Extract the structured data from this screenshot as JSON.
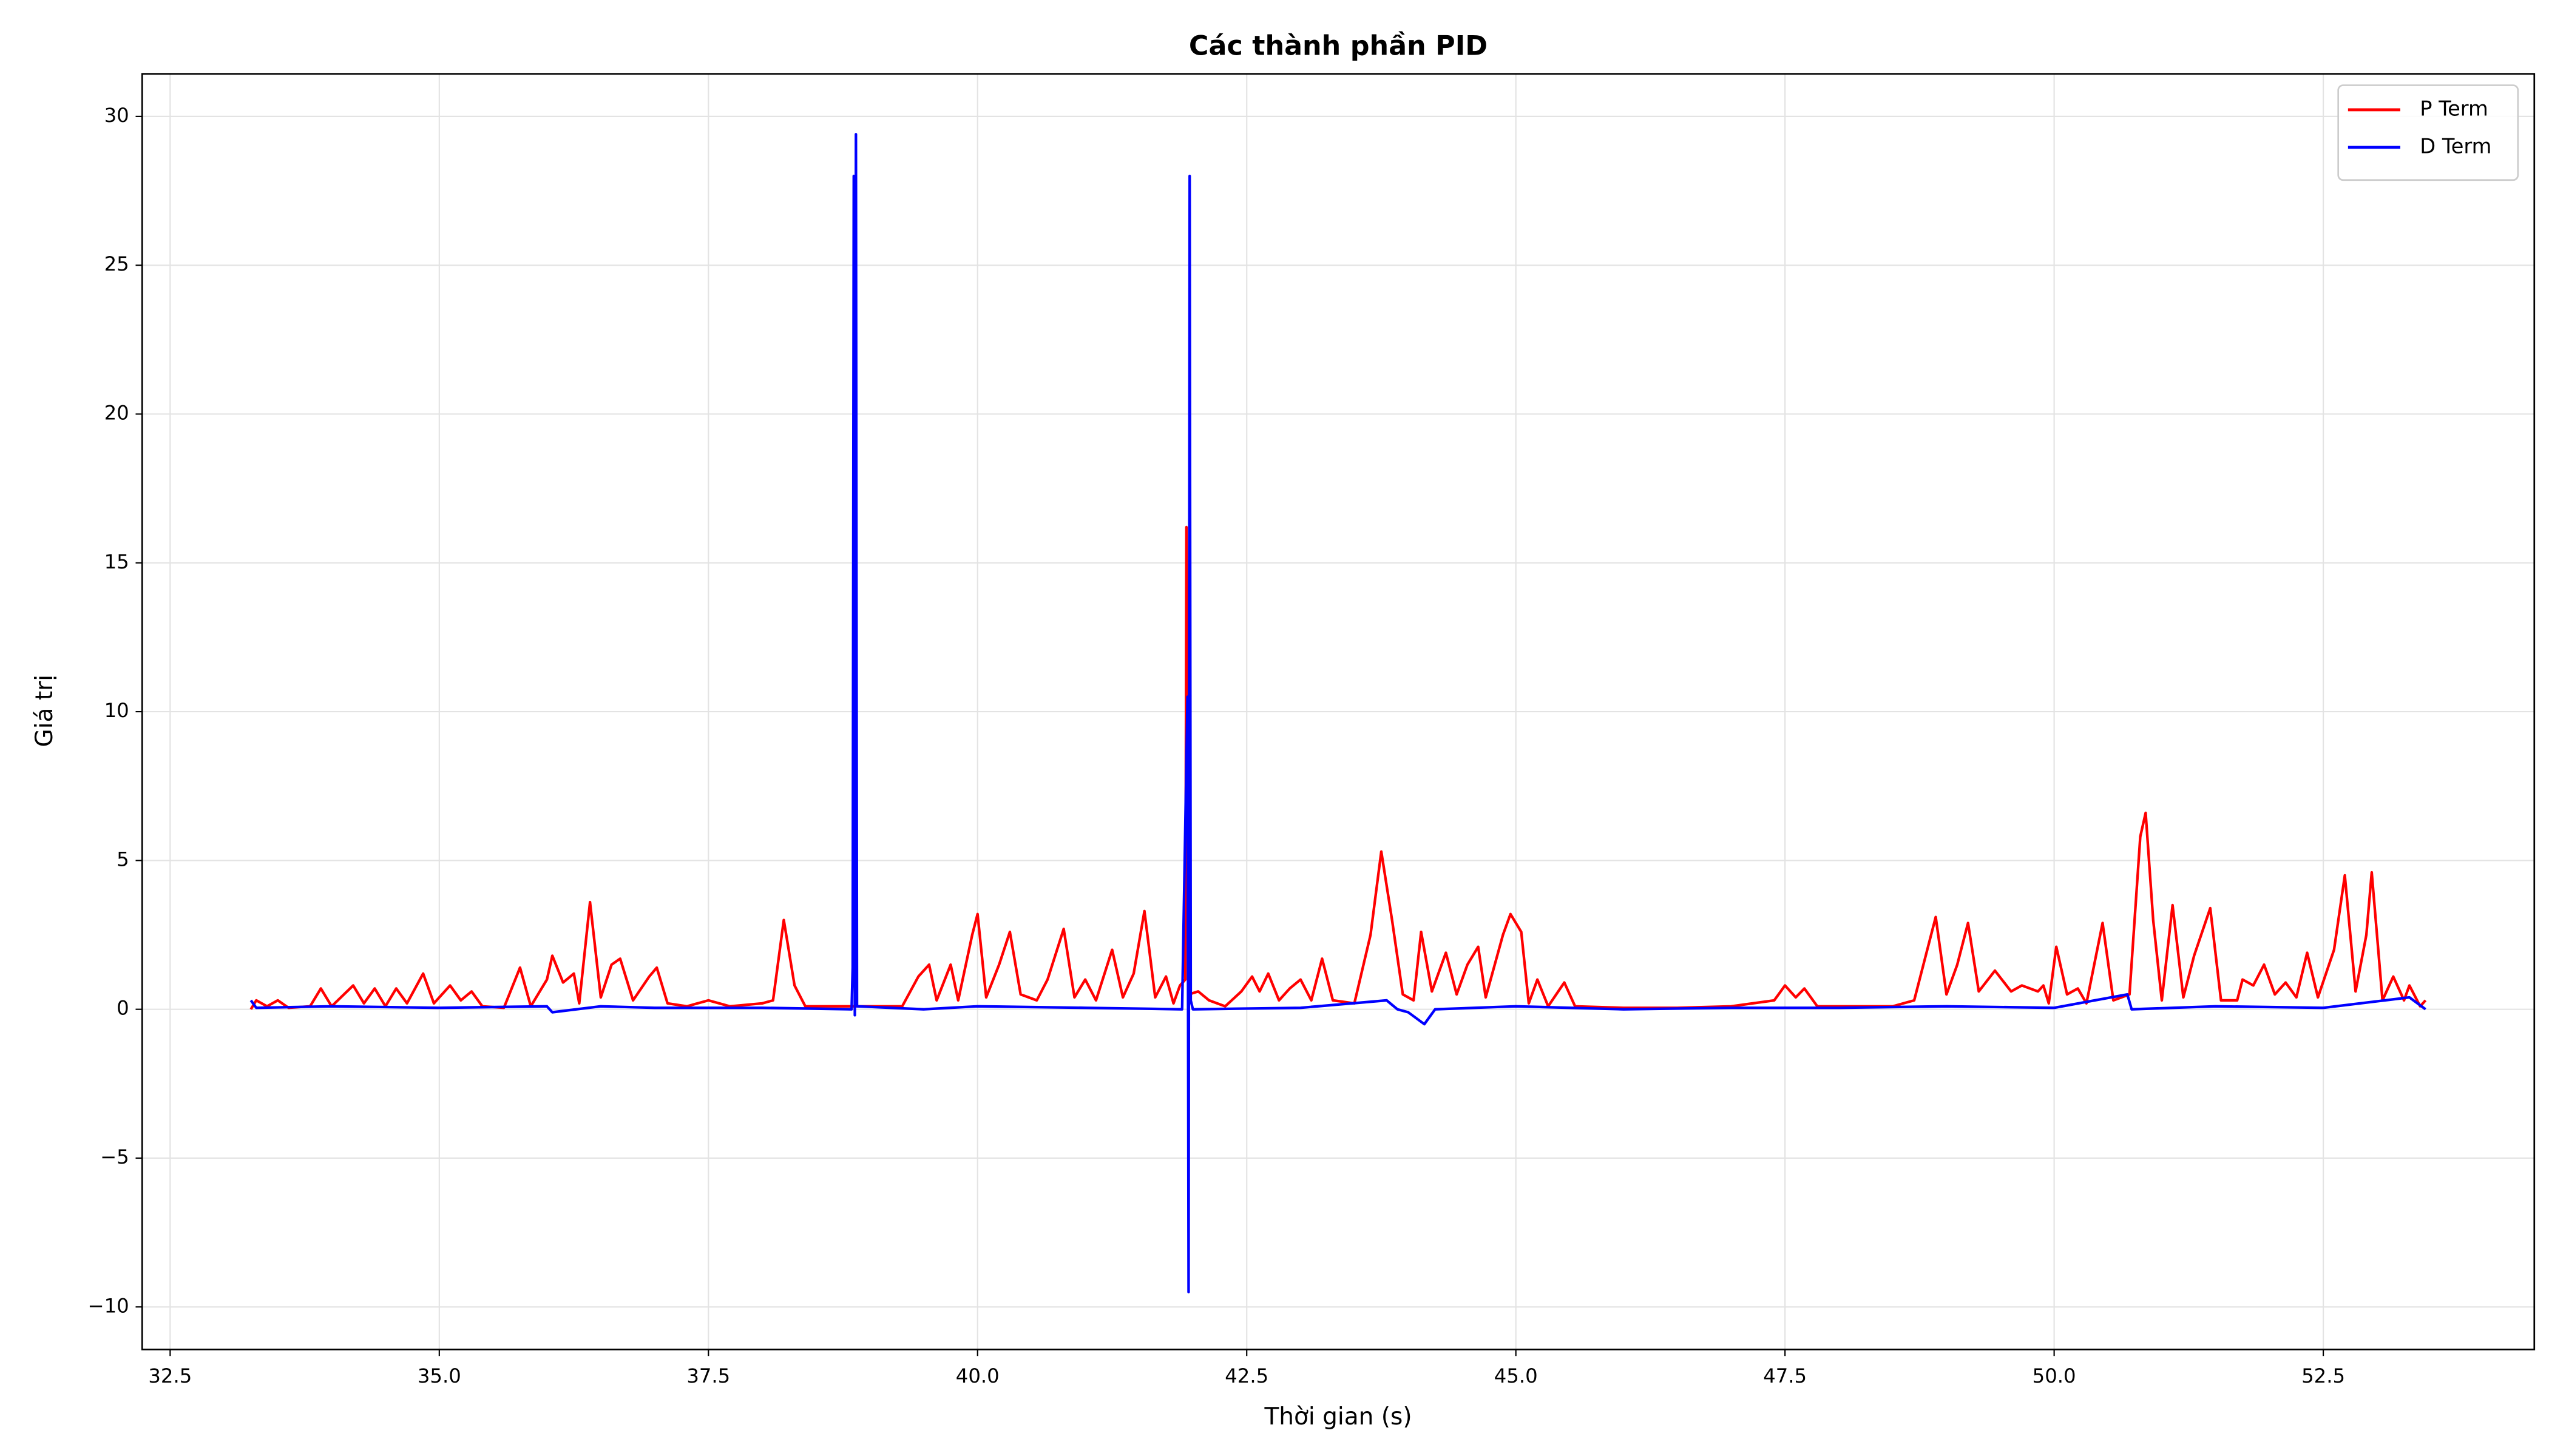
{
  "chart_data": {
    "type": "line",
    "title": "Các thành phần PID",
    "x_label": "Thời gian (s)",
    "y_label": "Giá trị",
    "xlim": [
      32.24,
      54.46
    ],
    "ylim": [
      -11.43,
      31.43
    ],
    "xticks": [
      32.5,
      {
        "value": 35,
        "label": "35.0"
      },
      37.5,
      {
        "value": 40,
        "label": "40.0"
      },
      42.5,
      {
        "value": 45,
        "label": "45.0"
      },
      47.5,
      {
        "value": 50,
        "label": "50.0"
      },
      52.5
    ],
    "yticks": [
      {
        "value": -10,
        "label": "−10"
      },
      {
        "value": -5,
        "label": "−5"
      },
      0,
      5,
      10,
      15,
      20,
      25,
      30
    ],
    "grid": true,
    "legend": "upper right",
    "series": [
      {
        "name": "P Term",
        "color": "#ff0000",
        "x": [
          33.25,
          33.3,
          33.4,
          33.5,
          33.6,
          33.8,
          33.9,
          34.0,
          34.2,
          34.3,
          34.4,
          34.5,
          34.6,
          34.7,
          34.85,
          34.95,
          35.1,
          35.2,
          35.3,
          35.4,
          35.6,
          35.75,
          35.85,
          36.0,
          36.05,
          36.15,
          36.25,
          36.3,
          36.4,
          36.5,
          36.6,
          36.68,
          36.8,
          36.95,
          37.02,
          37.12,
          37.3,
          37.5,
          37.7,
          38.0,
          38.1,
          38.2,
          38.3,
          38.4,
          38.8,
          38.9,
          39.3,
          39.45,
          39.55,
          39.62,
          39.75,
          39.82,
          39.95,
          40.0,
          40.08,
          40.2,
          40.3,
          40.4,
          40.55,
          40.65,
          40.8,
          40.9,
          41.0,
          41.1,
          41.25,
          41.35,
          41.45,
          41.55,
          41.65,
          41.75,
          41.82,
          41.88,
          41.93,
          41.94,
          41.96,
          42.05,
          42.15,
          42.3,
          42.45,
          42.55,
          42.62,
          42.7,
          42.8,
          42.9,
          43.0,
          43.1,
          43.2,
          43.3,
          43.5,
          43.65,
          43.75,
          43.85,
          43.95,
          44.05,
          44.12,
          44.22,
          44.35,
          44.45,
          44.55,
          44.65,
          44.72,
          44.88,
          44.95,
          45.05,
          45.12,
          45.2,
          45.3,
          45.45,
          45.55,
          46.0,
          46.5,
          47.0,
          47.4,
          47.5,
          47.6,
          47.68,
          47.8,
          48.5,
          48.7,
          48.9,
          49.0,
          49.1,
          49.2,
          49.3,
          49.45,
          49.6,
          49.7,
          49.85,
          49.9,
          49.95,
          50.02,
          50.12,
          50.22,
          50.3,
          50.45,
          50.55,
          50.7,
          50.8,
          50.85,
          50.92,
          51.0,
          51.1,
          51.2,
          51.3,
          51.45,
          51.55,
          51.7,
          51.75,
          51.85,
          51.95,
          52.05,
          52.15,
          52.25,
          52.35,
          52.45,
          52.6,
          52.7,
          52.8,
          52.9,
          52.95,
          53.05,
          53.15,
          53.25,
          53.3,
          53.4,
          53.45
        ],
        "values": [
          0,
          0.3,
          0.1,
          0.3,
          0.05,
          0.1,
          0.7,
          0.1,
          0.8,
          0.2,
          0.7,
          0.1,
          0.7,
          0.2,
          1.2,
          0.2,
          0.8,
          0.3,
          0.6,
          0.1,
          0.05,
          1.4,
          0.1,
          1.0,
          1.8,
          0.9,
          1.2,
          0.2,
          3.6,
          0.4,
          1.5,
          1.7,
          0.3,
          1.1,
          1.4,
          0.2,
          0.1,
          0.3,
          0.1,
          0.2,
          0.3,
          3.0,
          0.8,
          0.1,
          0.1,
          0.1,
          0.1,
          1.1,
          1.5,
          0.3,
          1.5,
          0.3,
          2.5,
          3.2,
          0.4,
          1.5,
          2.6,
          0.5,
          0.3,
          1.0,
          2.7,
          0.4,
          1.0,
          0.3,
          2.0,
          0.4,
          1.2,
          3.3,
          0.4,
          1.1,
          0.2,
          0.8,
          1.0,
          16.2,
          0.5,
          0.6,
          0.3,
          0.1,
          0.6,
          1.1,
          0.6,
          1.2,
          0.3,
          0.7,
          1.0,
          0.3,
          1.7,
          0.3,
          0.2,
          2.5,
          5.3,
          3.0,
          0.5,
          0.3,
          2.6,
          0.6,
          1.9,
          0.5,
          1.5,
          2.1,
          0.4,
          2.5,
          3.2,
          2.6,
          0.2,
          1.0,
          0.1,
          0.9,
          0.1,
          0.05,
          0.05,
          0.1,
          0.3,
          0.8,
          0.4,
          0.7,
          0.1,
          0.1,
          0.3,
          3.1,
          0.5,
          1.5,
          2.9,
          0.6,
          1.3,
          0.6,
          0.8,
          0.6,
          0.8,
          0.2,
          2.1,
          0.5,
          0.7,
          0.2,
          2.9,
          0.3,
          0.5,
          5.8,
          6.6,
          3.0,
          0.3,
          3.5,
          0.4,
          1.8,
          3.4,
          0.3,
          0.3,
          1.0,
          0.8,
          1.5,
          0.5,
          0.9,
          0.4,
          1.9,
          0.4,
          2.0,
          4.5,
          0.6,
          2.5,
          4.6,
          0.3,
          1.1,
          0.3,
          0.8,
          0.1,
          0.3
        ]
      },
      {
        "name": "D Term",
        "color": "#0000ff",
        "x": [
          33.25,
          33.3,
          34.0,
          35.0,
          36.0,
          36.05,
          36.5,
          37.0,
          38.0,
          38.83,
          38.84,
          38.85,
          38.86,
          38.87,
          38.88,
          39.5,
          40.0,
          41.0,
          41.9,
          41.95,
          41.96,
          41.97,
          41.98,
          42.0,
          43.0,
          43.8,
          43.9,
          44.0,
          44.15,
          44.25,
          45.0,
          46.0,
          47.0,
          48.0,
          49.0,
          50.0,
          50.68,
          50.72,
          51.5,
          52.5,
          53.3,
          53.45
        ],
        "values": [
          0.3,
          0.05,
          0.1,
          0.05,
          0.1,
          -0.1,
          0.1,
          0.05,
          0.05,
          0,
          1.4,
          28,
          -0.2,
          29.4,
          0.1,
          0,
          0.1,
          0.05,
          0,
          10.5,
          -9.5,
          28,
          0.3,
          0,
          0.05,
          0.3,
          0,
          -0.1,
          -0.5,
          0,
          0.1,
          0,
          0.05,
          0.05,
          0.1,
          0.05,
          0.5,
          0,
          0.1,
          0.05,
          0.4,
          0
        ]
      }
    ]
  }
}
